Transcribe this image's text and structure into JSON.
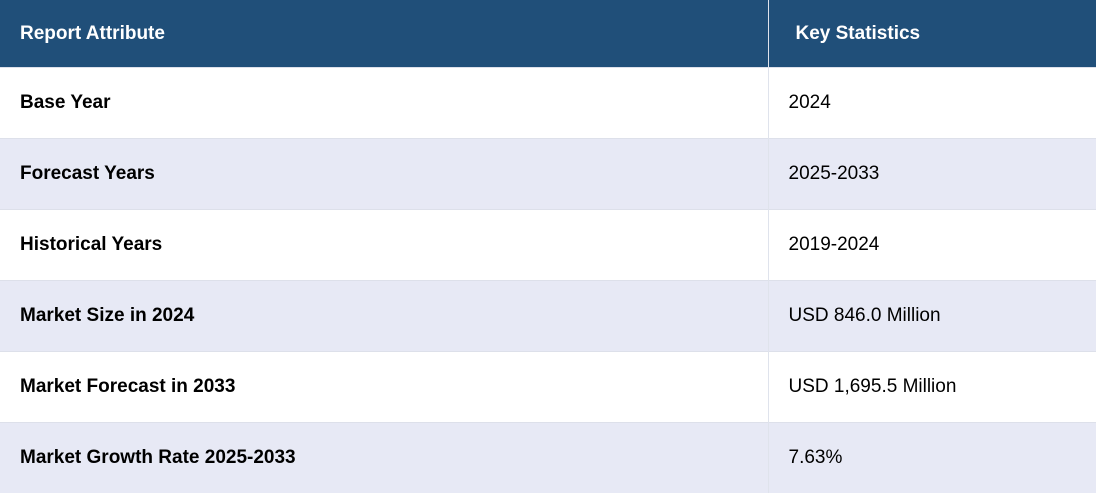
{
  "table": {
    "header": [
      "Report Attribute",
      "Key Statistics"
    ],
    "rows": [
      [
        "Base Year",
        "2024"
      ],
      [
        "Forecast Years",
        "2025-2033"
      ],
      [
        "Historical Years",
        "2019-2024"
      ],
      [
        "Market Size in 2024",
        "USD 846.0 Million"
      ],
      [
        "Market Forecast in 2033",
        "USD 1,695.5 Million"
      ],
      [
        "Market Growth Rate 2025-2033",
        "7.63%"
      ]
    ]
  }
}
